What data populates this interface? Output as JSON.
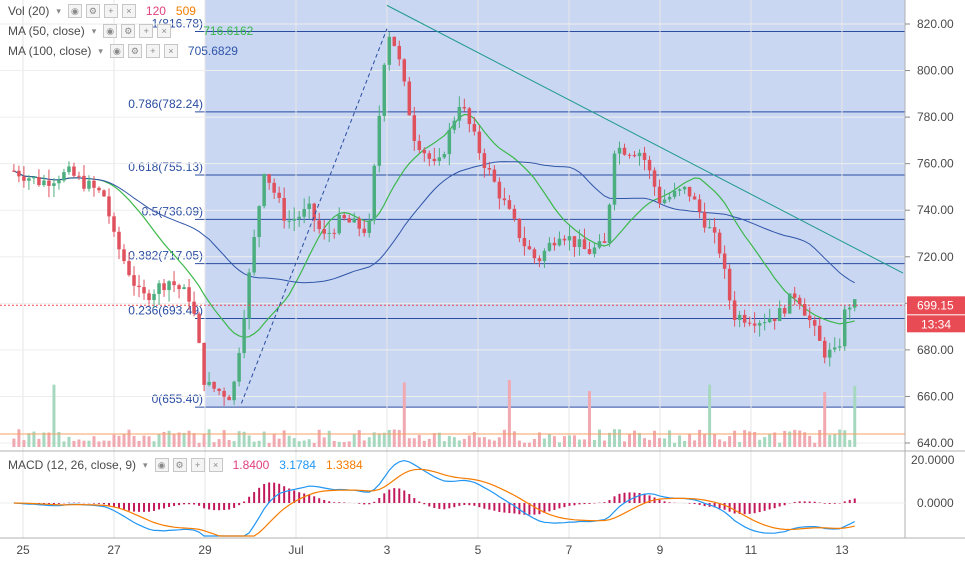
{
  "legend": {
    "vol": {
      "label": "Vol (20)",
      "value1": "120",
      "value2": "509",
      "color1": "#e0407e",
      "color2": "#f57c00"
    },
    "ma50": {
      "label": "MA (50, close)",
      "value": "716.6162",
      "color": "#3cb84a"
    },
    "ma100": {
      "label": "MA (100, close)",
      "value": "705.6829",
      "color": "#2f55a8"
    },
    "macd": {
      "label": "MACD (12, 26, close, 9)",
      "v1": "1.8400",
      "v2": "3.1784",
      "v3": "1.3384",
      "c1": "#e0407e",
      "c2": "#2196f3",
      "c3": "#f57c00"
    }
  },
  "price_badge": {
    "value": "699.15",
    "countdown": "13:34",
    "color": "#e94b55"
  },
  "fib_labels": [
    {
      "label": "1(816.78)"
    },
    {
      "label": "0.786(782.24)"
    },
    {
      "label": "0.618(755.13)"
    },
    {
      "label": "0.5(736.09)"
    },
    {
      "label": "0.382(717.05)"
    },
    {
      "label": "0.236(693.49)"
    },
    {
      "label": "0(655.40)"
    }
  ],
  "colors": {
    "up": "#4cae7f",
    "down": "#e0515e",
    "fib_fill": "#c9d7f3",
    "fib_line": "#2a4da0",
    "trend": "#1e9a8c",
    "ma50": "#3cb84a",
    "ma100": "#2f55a8"
  },
  "chart_data": {
    "type": "candlestick",
    "y_axis": {
      "min": 640,
      "max": 820,
      "ticks": [
        "820.00",
        "800.00",
        "780.00",
        "760.00",
        "740.00",
        "720.00",
        "700.00",
        "680.00",
        "660.00",
        "640.00"
      ]
    },
    "x_axis": {
      "ticks": [
        "25",
        "27",
        "29",
        "Jul",
        "3",
        "5",
        "7",
        "9",
        "11",
        "13"
      ]
    },
    "fibonacci": {
      "levels": [
        {
          "ratio": 1,
          "price": 816.78
        },
        {
          "ratio": 0.786,
          "price": 782.24
        },
        {
          "ratio": 0.618,
          "price": 755.13
        },
        {
          "ratio": 0.5,
          "price": 736.09
        },
        {
          "ratio": 0.382,
          "price": 717.05
        },
        {
          "ratio": 0.236,
          "price": 693.49
        },
        {
          "ratio": 0,
          "price": 655.4
        }
      ]
    },
    "last_price": 699.15,
    "close_keypoints": [
      {
        "day": "24.8",
        "close": 757
      },
      {
        "day": "25.4",
        "close": 752
      },
      {
        "day": "26",
        "close": 756
      },
      {
        "day": "26.8",
        "close": 746
      },
      {
        "day": "27",
        "close": 728
      },
      {
        "day": "27.6",
        "close": 702
      },
      {
        "day": "28.2",
        "close": 710
      },
      {
        "day": "28.7",
        "close": 702
      },
      {
        "day": "29",
        "close": 665
      },
      {
        "day": "29.6",
        "close": 660
      },
      {
        "day": "30",
        "close": 716
      },
      {
        "day": "30.3",
        "close": 758
      },
      {
        "day": "30.8",
        "close": 735
      },
      {
        "day": "Jul 1.3",
        "close": 740
      },
      {
        "day": "Jul 1.6",
        "close": 728
      },
      {
        "day": "Jul 2",
        "close": 736
      },
      {
        "day": "Jul 2.6",
        "close": 731
      },
      {
        "day": "Jul 3",
        "close": 818
      },
      {
        "day": "Jul 3.2",
        "close": 810
      },
      {
        "day": "Jul 3.6",
        "close": 772
      },
      {
        "day": "Jul 4.1",
        "close": 757
      },
      {
        "day": "Jul 4.6",
        "close": 787
      },
      {
        "day": "Jul 5.1",
        "close": 762
      },
      {
        "day": "Jul 5.6",
        "close": 742
      },
      {
        "day": "Jul 6",
        "close": 726
      },
      {
        "day": "Jul 6.3",
        "close": 718
      },
      {
        "day": "Jul 6.8",
        "close": 731
      },
      {
        "day": "Jul 7.4",
        "close": 722
      },
      {
        "day": "Jul 7.8",
        "close": 725
      },
      {
        "day": "Jul 8",
        "close": 767
      },
      {
        "day": "Jul 8.6",
        "close": 765
      },
      {
        "day": "Jul 9",
        "close": 744
      },
      {
        "day": "Jul 9.6",
        "close": 749
      },
      {
        "day": "Jul 10.3",
        "close": 724
      },
      {
        "day": "Jul 10.6",
        "close": 695
      },
      {
        "day": "Jul 11.2",
        "close": 693
      },
      {
        "day": "Jul 11.6",
        "close": 695
      },
      {
        "day": "Jul 12",
        "close": 705
      },
      {
        "day": "Jul 12.6",
        "close": 679
      },
      {
        "day": "Jul 12.9",
        "close": 678
      },
      {
        "day": "Jul 13.1",
        "close": 700
      },
      {
        "day": "Jul 13.3",
        "close": 699
      }
    ]
  }
}
